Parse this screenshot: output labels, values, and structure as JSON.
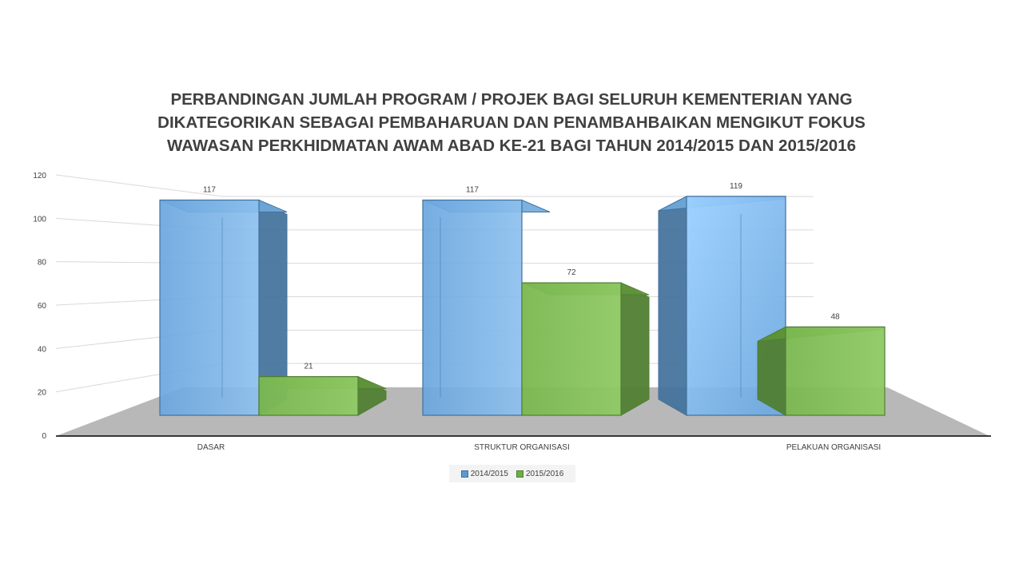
{
  "chart_data": {
    "type": "bar",
    "title_lines": [
      "PERBANDINGAN JUMLAH PROGRAM / PROJEK BAGI SELURUH KEMENTERIAN YANG",
      "DIKATEGORIKAN SEBAGAI PEMBAHARUAN DAN PENAMBAHBAIKAN MENGIKUT FOKUS",
      "WAWASAN PERKHIDMATAN AWAM ABAD KE-21 BAGI TAHUN 2014/2015 DAN 2015/2016"
    ],
    "categories": [
      "DASAR",
      "STRUKTUR ORGANISASI",
      "PELAKUAN ORGANISASI"
    ],
    "series": [
      {
        "name": "2014/2015",
        "values": [
          117,
          117,
          119
        ],
        "color": "#5b9bd5"
      },
      {
        "name": "2015/2016",
        "values": [
          21,
          72,
          48
        ],
        "color": "#70ad47"
      }
    ],
    "ylim": [
      0,
      120
    ],
    "yticks": [
      "0",
      "20",
      "40",
      "60",
      "80",
      "100",
      "120"
    ],
    "grid": true,
    "legend_position": "bottom"
  }
}
